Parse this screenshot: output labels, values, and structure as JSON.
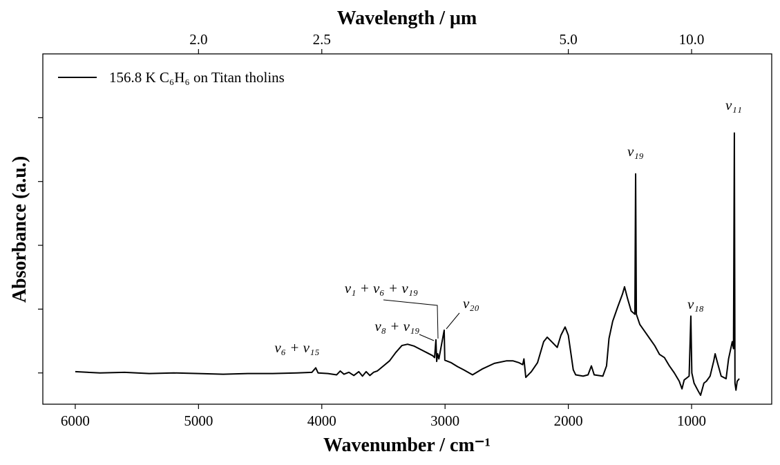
{
  "chart_data": {
    "type": "line",
    "xlabel": "Wavenumber / cm⁻¹",
    "x2label": "Wavelength / μm",
    "ylabel": "Absorbance (a.u.)",
    "xlim": [
      6263,
      350
    ],
    "xticks": [
      6000,
      5000,
      4000,
      3000,
      2000,
      1000
    ],
    "x2ticks": [
      {
        "value": 2.0,
        "label": "2.0"
      },
      {
        "value": 2.5,
        "label": "2.5"
      },
      {
        "value": 5.0,
        "label": "5.0"
      },
      {
        "value": 10.0,
        "label": "10.0"
      }
    ],
    "ylim": [
      -0.049,
      0.5
    ],
    "yticks": [
      0,
      0.1,
      0.2,
      0.3,
      0.4
    ],
    "ytick_labels": false,
    "legend": "upper left",
    "series": [
      {
        "name": "156.8 K C₆H₆ on Titan tholins",
        "color": "#000000",
        "x": [
          6000,
          5800,
          5600,
          5400,
          5200,
          5000,
          4800,
          4600,
          4400,
          4200,
          4080,
          4049,
          4030,
          3950,
          3880,
          3850,
          3820,
          3780,
          3740,
          3700,
          3670,
          3640,
          3610,
          3580,
          3550,
          3500,
          3450,
          3400,
          3350,
          3304,
          3250,
          3200,
          3150,
          3100,
          3085,
          3074,
          3068,
          3060,
          3050,
          3007,
          3002,
          2950,
          2900,
          2850,
          2777,
          2700,
          2600,
          2500,
          2450,
          2400,
          2370,
          2360,
          2345,
          2300,
          2250,
          2200,
          2171,
          2120,
          2090,
          2060,
          2026,
          2000,
          1980,
          1960,
          1940,
          1880,
          1840,
          1813,
          1790,
          1720,
          1690,
          1670,
          1640,
          1600,
          1560,
          1544,
          1520,
          1490,
          1460,
          1454,
          1448,
          1420,
          1380,
          1340,
          1300,
          1260,
          1220,
          1180,
          1140,
          1100,
          1078,
          1060,
          1020,
          1006,
          998,
          980,
          950,
          927,
          900,
          880,
          850,
          820,
          809,
          790,
          760,
          720,
          700,
          670,
          660,
          653,
          648,
          640,
          630,
          613
        ],
        "values": [
          0.002,
          0.0,
          0.001,
          -0.001,
          0.0,
          -0.001,
          -0.002,
          -0.001,
          -0.001,
          0.0,
          0.001,
          0.008,
          0.0,
          -0.001,
          -0.003,
          0.003,
          -0.002,
          0.001,
          -0.004,
          0.002,
          -0.005,
          0.002,
          -0.004,
          0.001,
          0.003,
          0.011,
          0.019,
          0.032,
          0.043,
          0.045,
          0.042,
          0.037,
          0.032,
          0.027,
          0.024,
          0.052,
          0.018,
          0.03,
          0.022,
          0.067,
          0.02,
          0.016,
          0.01,
          0.005,
          -0.003,
          0.006,
          0.015,
          0.019,
          0.019,
          0.016,
          0.013,
          0.022,
          -0.007,
          0.002,
          0.016,
          0.049,
          0.056,
          0.046,
          0.04,
          0.059,
          0.072,
          0.059,
          0.032,
          0.005,
          -0.003,
          -0.005,
          -0.003,
          0.011,
          -0.003,
          -0.005,
          0.011,
          0.054,
          0.081,
          0.103,
          0.124,
          0.135,
          0.117,
          0.097,
          0.092,
          0.312,
          0.092,
          0.076,
          0.065,
          0.054,
          0.043,
          0.029,
          0.024,
          0.011,
          0.0,
          -0.013,
          -0.025,
          -0.011,
          -0.005,
          0.089,
          0.0,
          -0.016,
          -0.027,
          -0.035,
          -0.016,
          -0.013,
          -0.005,
          0.019,
          0.03,
          0.016,
          -0.005,
          -0.009,
          0.022,
          0.049,
          0.038,
          0.376,
          -0.016,
          -0.027,
          -0.013,
          -0.009
        ]
      }
    ],
    "annotations": [
      "ν₆ + ν₁₅",
      "ν₁ + ν₆ + ν₁₉",
      "ν₈ + ν₁₉",
      "ν₂₀",
      "ν₁₉",
      "ν₁₈",
      "ν₁₁"
    ]
  }
}
